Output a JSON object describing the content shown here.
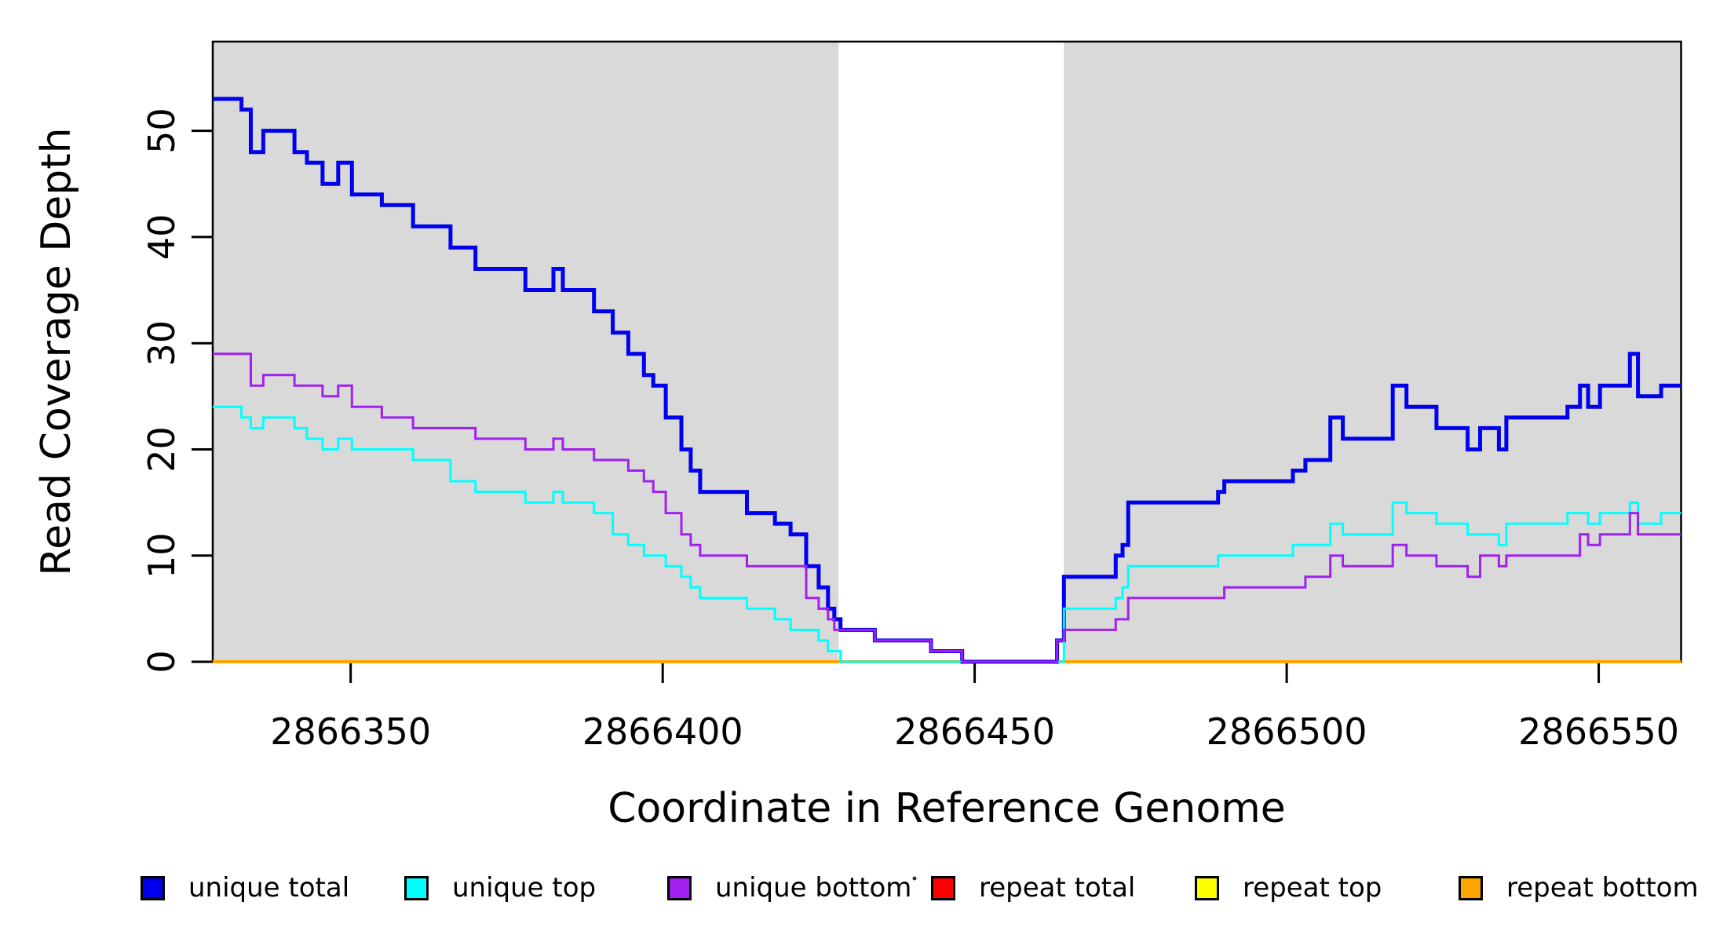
{
  "chart_data": {
    "type": "line",
    "subtype": "step-coverage-plot",
    "title": "",
    "xlabel": "Coordinate in Reference Genome",
    "ylabel": "Read Coverage Depth",
    "xlim": [
      2866327.9,
      2866563.2
    ],
    "ylim": [
      0,
      58.4
    ],
    "x_ticks": [
      2866350,
      2866400,
      2866450,
      2866500,
      2866550
    ],
    "y_ticks": [
      0,
      10,
      20,
      30,
      40,
      50
    ],
    "grid": false,
    "legend_position": "bottom",
    "background_color": "#ffffff",
    "shaded_region_color": "#d9d9d9",
    "shaded_regions": [
      [
        2866327.9,
        2866428.2
      ],
      [
        2866464.3,
        2866563.2
      ]
    ],
    "draw_order": [
      "repeat total",
      "repeat top",
      "repeat bottom",
      "unique total",
      "unique top",
      "unique bottom"
    ],
    "series": [
      {
        "name": "unique total",
        "color": "#0000ee",
        "line_width": 5,
        "steps": [
          [
            2866327.9,
            53
          ],
          [
            2866332.5,
            52
          ],
          [
            2866334,
            48
          ],
          [
            2866336,
            50
          ],
          [
            2866341,
            48
          ],
          [
            2866343,
            47
          ],
          [
            2866345.5,
            45
          ],
          [
            2866348,
            47
          ],
          [
            2866350.2,
            44
          ],
          [
            2866355,
            43
          ],
          [
            2866360,
            41
          ],
          [
            2866366,
            39
          ],
          [
            2866370,
            37
          ],
          [
            2866378,
            35
          ],
          [
            2866382.5,
            37
          ],
          [
            2866384,
            35
          ],
          [
            2866389,
            33
          ],
          [
            2866392,
            31
          ],
          [
            2866394.5,
            29
          ],
          [
            2866397,
            27
          ],
          [
            2866398.5,
            26
          ],
          [
            2866400.5,
            23
          ],
          [
            2866403,
            20
          ],
          [
            2866404.5,
            18
          ],
          [
            2866406,
            16
          ],
          [
            2866413.5,
            14
          ],
          [
            2866418,
            13
          ],
          [
            2866420.5,
            12
          ],
          [
            2866423,
            9
          ],
          [
            2866425,
            7
          ],
          [
            2866426.5,
            5
          ],
          [
            2866427.5,
            4
          ],
          [
            2866428.5,
            3
          ],
          [
            2866434,
            2
          ],
          [
            2866443,
            1
          ],
          [
            2866448,
            0
          ],
          [
            2866463.2,
            2
          ],
          [
            2866464.3,
            8
          ],
          [
            2866472.6,
            10
          ],
          [
            2866473.7,
            11
          ],
          [
            2866474.6,
            15
          ],
          [
            2866489,
            16
          ],
          [
            2866490,
            17
          ],
          [
            2866501,
            18
          ],
          [
            2866503,
            19
          ],
          [
            2866507,
            23
          ],
          [
            2866509,
            21
          ],
          [
            2866517,
            26
          ],
          [
            2866519.2,
            24
          ],
          [
            2866524,
            22
          ],
          [
            2866529,
            20
          ],
          [
            2866531,
            22
          ],
          [
            2866534,
            20
          ],
          [
            2866535.2,
            23
          ],
          [
            2866545,
            24
          ],
          [
            2866547,
            26
          ],
          [
            2866548.3,
            24
          ],
          [
            2866550.2,
            26
          ],
          [
            2866555,
            29
          ],
          [
            2866556.3,
            25
          ],
          [
            2866560,
            26
          ]
        ]
      },
      {
        "name": "unique top",
        "color": "#00ffff",
        "line_width": 3,
        "steps": [
          [
            2866327.9,
            24
          ],
          [
            2866332.5,
            23
          ],
          [
            2866334,
            22
          ],
          [
            2866336,
            23
          ],
          [
            2866341,
            22
          ],
          [
            2866343,
            21
          ],
          [
            2866345.5,
            20
          ],
          [
            2866348,
            21
          ],
          [
            2866350.2,
            20
          ],
          [
            2866355,
            20
          ],
          [
            2866360,
            19
          ],
          [
            2866366,
            17
          ],
          [
            2866370,
            16
          ],
          [
            2866378,
            15
          ],
          [
            2866382.5,
            16
          ],
          [
            2866384,
            15
          ],
          [
            2866389,
            14
          ],
          [
            2866392,
            12
          ],
          [
            2866394.5,
            11
          ],
          [
            2866397,
            10
          ],
          [
            2866398.5,
            10
          ],
          [
            2866400.5,
            9
          ],
          [
            2866403,
            8
          ],
          [
            2866404.5,
            7
          ],
          [
            2866406,
            6
          ],
          [
            2866413.5,
            5
          ],
          [
            2866418,
            4
          ],
          [
            2866420.5,
            3
          ],
          [
            2866423,
            3
          ],
          [
            2866425,
            2
          ],
          [
            2866426.5,
            1
          ],
          [
            2866427.5,
            1
          ],
          [
            2866428.5,
            0
          ],
          [
            2866464.3,
            5
          ],
          [
            2866472.6,
            6
          ],
          [
            2866473.7,
            7
          ],
          [
            2866474.6,
            9
          ],
          [
            2866489,
            10
          ],
          [
            2866490,
            10
          ],
          [
            2866501,
            11
          ],
          [
            2866503,
            11
          ],
          [
            2866507,
            13
          ],
          [
            2866509,
            12
          ],
          [
            2866517,
            15
          ],
          [
            2866519.2,
            14
          ],
          [
            2866524,
            13
          ],
          [
            2866529,
            12
          ],
          [
            2866531,
            12
          ],
          [
            2866534,
            11
          ],
          [
            2866535.2,
            13
          ],
          [
            2866545,
            14
          ],
          [
            2866547,
            14
          ],
          [
            2866548.3,
            13
          ],
          [
            2866550.2,
            14
          ],
          [
            2866555,
            15
          ],
          [
            2866556.3,
            13
          ],
          [
            2866560,
            14
          ]
        ]
      },
      {
        "name": "unique bottom",
        "color": "#a020f0",
        "line_width": 3,
        "steps": [
          [
            2866327.9,
            29
          ],
          [
            2866332.5,
            29
          ],
          [
            2866334,
            26
          ],
          [
            2866336,
            27
          ],
          [
            2866341,
            26
          ],
          [
            2866343,
            26
          ],
          [
            2866345.5,
            25
          ],
          [
            2866348,
            26
          ],
          [
            2866350.2,
            24
          ],
          [
            2866355,
            23
          ],
          [
            2866360,
            22
          ],
          [
            2866366,
            22
          ],
          [
            2866370,
            21
          ],
          [
            2866378,
            20
          ],
          [
            2866382.5,
            21
          ],
          [
            2866384,
            20
          ],
          [
            2866389,
            19
          ],
          [
            2866392,
            19
          ],
          [
            2866394.5,
            18
          ],
          [
            2866397,
            17
          ],
          [
            2866398.5,
            16
          ],
          [
            2866400.5,
            14
          ],
          [
            2866403,
            12
          ],
          [
            2866404.5,
            11
          ],
          [
            2866406,
            10
          ],
          [
            2866413.5,
            9
          ],
          [
            2866418,
            9
          ],
          [
            2866420.5,
            9
          ],
          [
            2866423,
            6
          ],
          [
            2866425,
            5
          ],
          [
            2866426.5,
            4
          ],
          [
            2866427.5,
            3
          ],
          [
            2866428.5,
            3
          ],
          [
            2866434,
            2
          ],
          [
            2866443,
            1
          ],
          [
            2866448,
            0
          ],
          [
            2866463.2,
            2
          ],
          [
            2866464.3,
            3
          ],
          [
            2866472.6,
            4
          ],
          [
            2866473.7,
            4
          ],
          [
            2866474.6,
            6
          ],
          [
            2866489,
            6
          ],
          [
            2866490,
            7
          ],
          [
            2866501,
            7
          ],
          [
            2866503,
            8
          ],
          [
            2866507,
            10
          ],
          [
            2866509,
            9
          ],
          [
            2866517,
            11
          ],
          [
            2866519.2,
            10
          ],
          [
            2866524,
            9
          ],
          [
            2866529,
            8
          ],
          [
            2866531,
            10
          ],
          [
            2866534,
            9
          ],
          [
            2866535.2,
            10
          ],
          [
            2866545,
            10
          ],
          [
            2866547,
            12
          ],
          [
            2866548.3,
            11
          ],
          [
            2866550.2,
            12
          ],
          [
            2866555,
            14
          ],
          [
            2866556.3,
            12
          ],
          [
            2866560,
            12
          ]
        ]
      },
      {
        "name": "repeat total",
        "color": "#ff0000",
        "line_width": 3,
        "steps": [
          [
            2866327.9,
            0
          ]
        ]
      },
      {
        "name": "repeat top",
        "color": "#ffff00",
        "line_width": 3,
        "steps": [
          [
            2866327.9,
            0
          ]
        ]
      },
      {
        "name": "repeat bottom",
        "color": "#ffa500",
        "line_width": 4,
        "steps": [
          [
            2866327.9,
            0
          ]
        ]
      }
    ],
    "legend": {
      "items": [
        {
          "label": "unique total",
          "color": "#0000ee"
        },
        {
          "label": "unique top",
          "color": "#00ffff"
        },
        {
          "label": "unique bottom",
          "color": "#a020f0"
        },
        {
          "label": "repeat total",
          "color": "#ff0000"
        },
        {
          "label": "repeat top",
          "color": "#ffff00"
        },
        {
          "label": "repeat bottom",
          "color": "#ffa500"
        }
      ]
    }
  }
}
